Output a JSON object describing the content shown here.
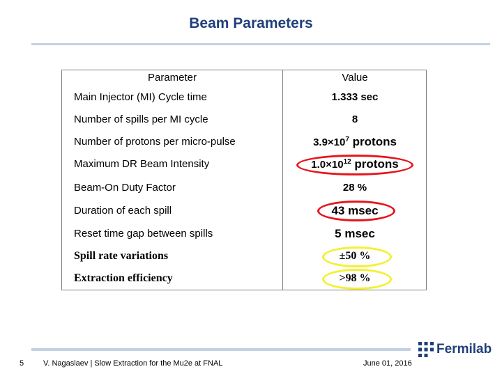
{
  "slide": {
    "title": "Beam Parameters",
    "page_number": "5",
    "footer_author": "V. Nagaslaev | Slow Extraction for the Mu2e at FNAL",
    "footer_date": "June 01, 2016",
    "logo_text": "Fermilab"
  },
  "table": {
    "header_param": "Parameter",
    "header_value": "Value",
    "rows": [
      {
        "param": "Main Injector (MI) Cycle time",
        "value": "1.333 sec"
      },
      {
        "param": "Number of spills per MI cycle",
        "value": "8"
      },
      {
        "param": "Number of protons per micro-pulse",
        "value_base": "3.9×10",
        "value_exp": "7",
        "value_unit": " protons"
      },
      {
        "param": "Maximum DR Beam Intensity",
        "value_base": "1.0×10",
        "value_exp": "12",
        "value_unit": " protons"
      },
      {
        "param": "Beam-On Duty Factor",
        "value": "28 %"
      },
      {
        "param": "Duration of each spill",
        "value": "43 msec"
      },
      {
        "param": "Reset time gap between spills",
        "value": "5 msec"
      },
      {
        "param": "Spill rate variations",
        "value": "±50 %"
      },
      {
        "param": "Extraction efficiency",
        "value": ">98 %"
      }
    ]
  },
  "highlights": {
    "red_color": "#e8141c",
    "yellow_color": "#f5f030"
  },
  "colors": {
    "title": "#1f3f7a",
    "rule": "#c3d2e3"
  }
}
